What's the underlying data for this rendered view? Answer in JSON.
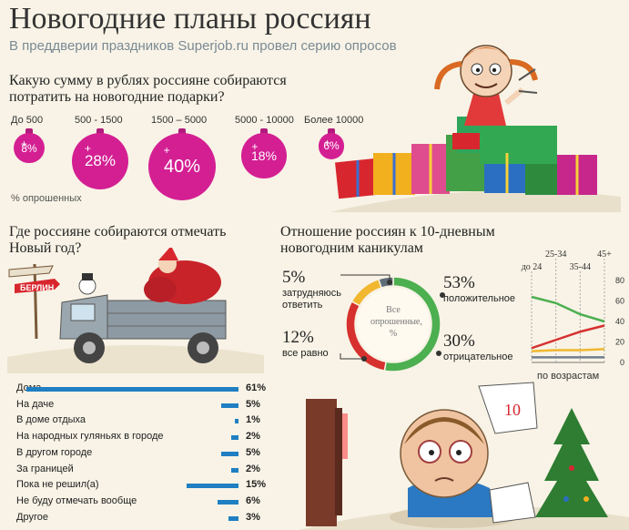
{
  "header": {
    "title": "Новогодние планы россиян",
    "subtitle": "В преддверии праздников Superjob.ru провел серию опросов"
  },
  "spend": {
    "question": "Какую сумму в рублях россияне собираются потратить на новогодние подарки?",
    "note": "% опрошенных"
  },
  "where": {
    "question": "Где россияне собираются отмечать Новый год?",
    "sign": "БЕРЛИН"
  },
  "attitude": {
    "question": "Отношение россиян к 10-дневным новогодним каникулам",
    "center_label": "Все опрошенные, %",
    "by_age_label": "по возрастам",
    "calendar_day": "10"
  },
  "chart_data": [
    {
      "type": "bubble",
      "title": "Какую сумму в рублях россияне собираются потратить на новогодние подарки?",
      "categories": [
        "До 500",
        "500 - 1500",
        "1500 – 5000",
        "5000 - 10000",
        "Более 10000"
      ],
      "values": [
        8,
        28,
        40,
        18,
        6
      ],
      "labels": [
        "8%",
        "28%",
        "40%",
        "18%",
        "6%"
      ],
      "unit": "% опрошенных",
      "color": "#d41f93"
    },
    {
      "type": "bar",
      "orientation": "horizontal",
      "title": "Где россияне собираются отмечать Новый год?",
      "categories": [
        "Дома",
        "На даче",
        "В доме отдыха",
        "На народных гуляньях в городе",
        "В другом городе",
        "За границей",
        "Пока не решил(а)",
        "Не буду отмечать вообще",
        "Другое"
      ],
      "values": [
        61,
        5,
        1,
        2,
        5,
        2,
        15,
        6,
        3
      ],
      "labels": [
        "61%",
        "5%",
        "1%",
        "2%",
        "5%",
        "2%",
        "15%",
        "6%",
        "3%"
      ],
      "color": "#1f7fc2"
    },
    {
      "type": "pie",
      "title": "Отношение россиян к 10-дневным новогодним каникулам",
      "categories": [
        "положительное",
        "отрицательное",
        "все равно",
        "затрудняюсь ответить"
      ],
      "values": [
        53,
        30,
        12,
        5
      ],
      "labels": [
        "53%",
        "30%",
        "12%",
        "5%"
      ],
      "colors": [
        "#4caf50",
        "#d6312f",
        "#f0b72f",
        "#5f6d78"
      ]
    },
    {
      "type": "line",
      "xlabel": "по возрастам",
      "categories": [
        "до 24",
        "25-34",
        "35-44",
        "45+"
      ],
      "ylim": [
        0,
        80
      ],
      "yticks": [
        "0",
        "20",
        "40",
        "60",
        "80"
      ],
      "series": [
        {
          "values": [
            64,
            58,
            47,
            40
          ],
          "color": "#4caf50"
        },
        {
          "values": [
            14,
            22,
            30,
            36
          ],
          "color": "#d6312f"
        },
        {
          "values": [
            11,
            12,
            12,
            13
          ],
          "color": "#f0b72f"
        },
        {
          "values": [
            5,
            5,
            5,
            5
          ],
          "color": "#6f7f8c"
        }
      ]
    }
  ]
}
